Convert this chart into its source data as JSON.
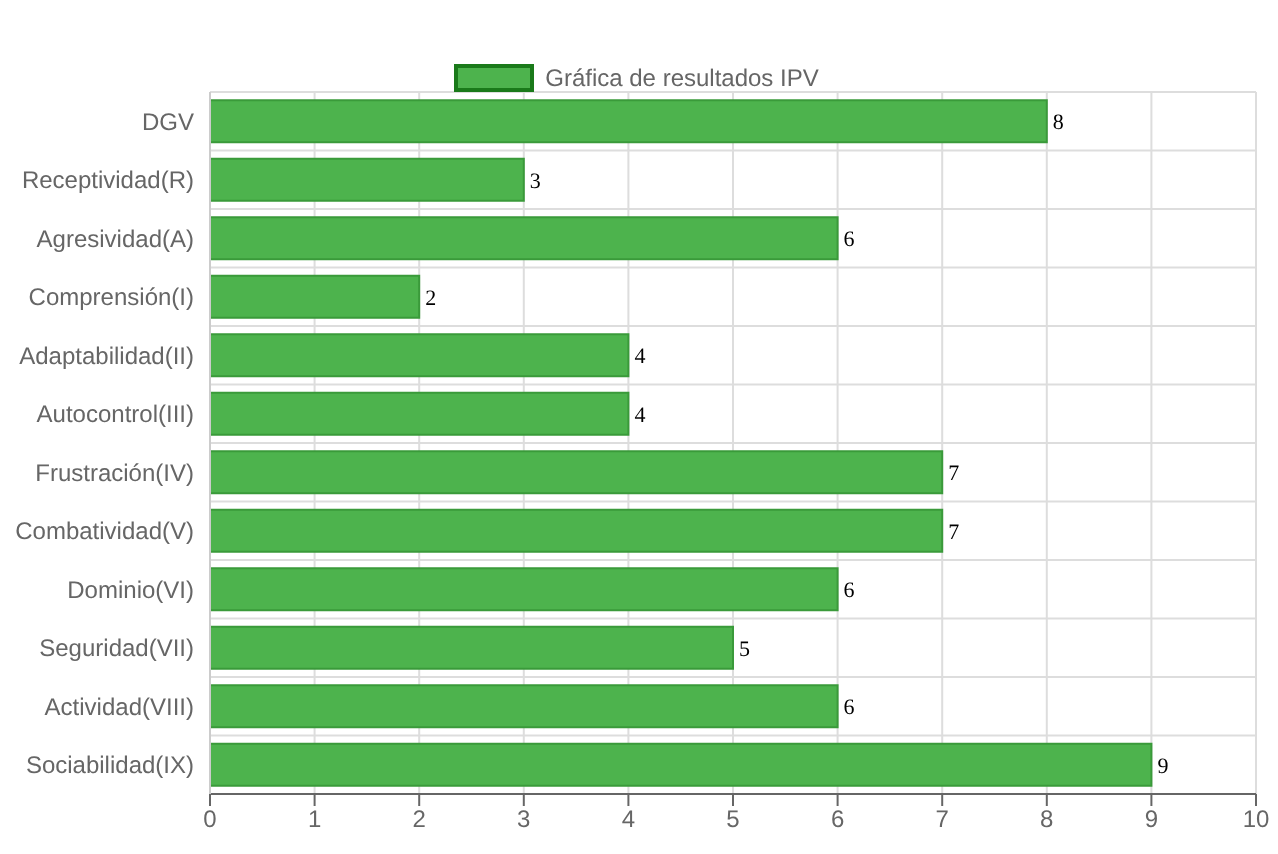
{
  "chart_data": {
    "type": "bar",
    "orientation": "horizontal",
    "categories": [
      "DGV",
      "Receptividad(R)",
      "Agresividad(A)",
      "Comprensión(I)",
      "Adaptabilidad(II)",
      "Autocontrol(III)",
      "Frustración(IV)",
      "Combatividad(V)",
      "Dominio(VI)",
      "Seguridad(VII)",
      "Actividad(VIII)",
      "Sociabilidad(IX)"
    ],
    "series": [
      {
        "name": "Gráfica de resultados IPV",
        "color": "#4db34d",
        "values": [
          8,
          3,
          6,
          2,
          4,
          4,
          7,
          7,
          6,
          5,
          6,
          9
        ]
      }
    ],
    "xlim": [
      0,
      10
    ],
    "xticks": [
      0,
      1,
      2,
      3,
      4,
      5,
      6,
      7,
      8,
      9,
      10
    ],
    "grid": true,
    "legend": "top",
    "data_labels": true
  }
}
